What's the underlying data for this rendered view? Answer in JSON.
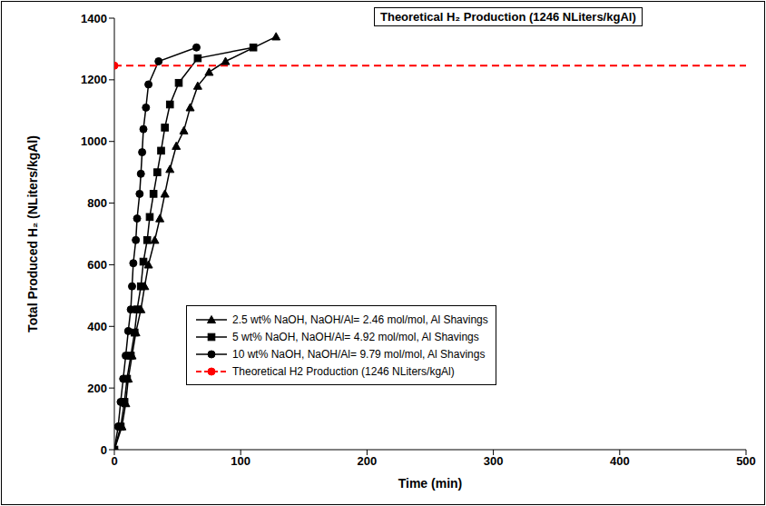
{
  "chart_data": {
    "type": "line",
    "title": "Theoretical H₂ Production (1246 NLiters/kgAl)",
    "x_label": "Time (min)",
    "y_label": "Total Produced H₂ (NLiters/kgAl)",
    "xlim": [
      0,
      500
    ],
    "xticks": [
      0,
      100,
      200,
      300,
      400,
      500
    ],
    "ylim": [
      0,
      1400
    ],
    "yticks": [
      0,
      200,
      400,
      600,
      800,
      1000,
      1200,
      1400
    ],
    "grid": false,
    "legend": "left",
    "series": [
      {
        "name": "2.5 wt% NaOH, NaOH/Al= 2.46 mol/mol, Al Shavings",
        "type": "line",
        "color": "#000000",
        "marker": "triangle",
        "line_style": "solid",
        "x": [
          0,
          6,
          9,
          11,
          14,
          17,
          21,
          24,
          27,
          32,
          36,
          40,
          44,
          49,
          55,
          60,
          66,
          75,
          88,
          128
        ],
        "values": [
          0,
          75,
          150,
          230,
          305,
          380,
          455,
          530,
          600,
          680,
          750,
          830,
          910,
          985,
          1035,
          1110,
          1180,
          1225,
          1260,
          1340
        ]
      },
      {
        "name": "5 wt% NaOH, NaOH/Al= 4.92 mol/mol, Al Shavings",
        "type": "line",
        "color": "#000000",
        "marker": "square",
        "line_style": "solid",
        "x": [
          0,
          5,
          8,
          10,
          13,
          16,
          18,
          21,
          23,
          26,
          28,
          31,
          34,
          37,
          40,
          44,
          51,
          66,
          110
        ],
        "values": [
          0,
          75,
          155,
          230,
          305,
          380,
          455,
          530,
          610,
          680,
          755,
          830,
          900,
          970,
          1045,
          1120,
          1190,
          1270,
          1305
        ]
      },
      {
        "name": "10 wt% NaOH, NaOH/Al= 9.79 mol/mol, Al Shavings",
        "type": "line",
        "color": "#000000",
        "marker": "circle",
        "line_style": "solid",
        "x": [
          0,
          3,
          5,
          7,
          9,
          11,
          13,
          14,
          15,
          17,
          18,
          20,
          21,
          22,
          23,
          25,
          27,
          35,
          65
        ],
        "values": [
          0,
          75,
          155,
          230,
          305,
          385,
          455,
          530,
          605,
          680,
          750,
          830,
          895,
          965,
          1040,
          1110,
          1185,
          1260,
          1305
        ]
      },
      {
        "name": "Theoretical H2 Production (1246 NLiters/kgAl)",
        "type": "reference",
        "color": "#ff0000",
        "marker": "circle",
        "line_style": "dashed",
        "x": [
          0,
          500
        ],
        "values": [
          1246,
          1246
        ]
      }
    ]
  }
}
